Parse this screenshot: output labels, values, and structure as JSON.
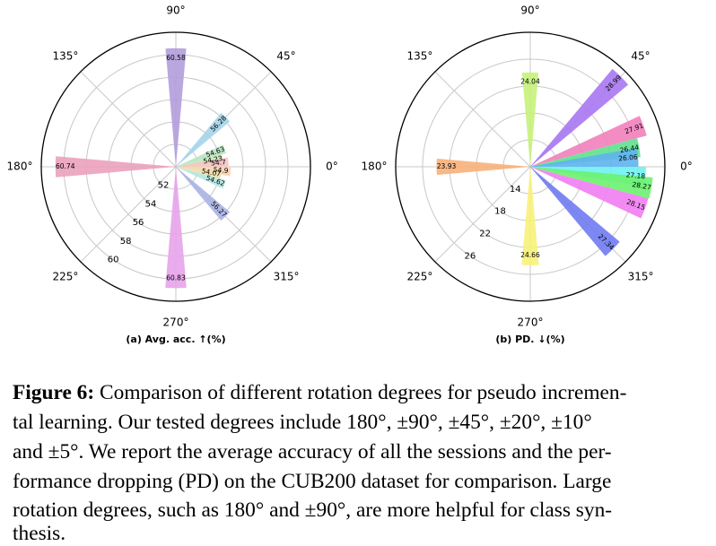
{
  "charts": [
    {
      "chart_data": {
        "type": "polar-bar",
        "title": "(a) Avg. acc. ↑(%)",
        "angle_tick_labels": [
          "90°",
          "45°",
          "0°",
          "315°",
          "270°",
          "225°",
          "180°",
          "135°"
        ],
        "radial_tick_labels": [
          "52",
          "54",
          "56",
          "58",
          "60"
        ],
        "radial_ticks": [
          52,
          54,
          56,
          58,
          60
        ],
        "rlim": [
          50,
          62
        ],
        "bars": [
          {
            "angle": 90,
            "value": 60.58,
            "label": "60.58",
            "color": "#b39ddb"
          },
          {
            "angle": 45,
            "value": 56.28,
            "label": "56.28",
            "color": "#a6d4ea"
          },
          {
            "angle": 20,
            "value": 54.63,
            "label": "54.63",
            "color": "#b7e4c2"
          },
          {
            "angle": 10,
            "value": 54.23,
            "label": "54.23",
            "color": "#c6e3b4"
          },
          {
            "angle": 5,
            "value": 54.7,
            "label": "54.7",
            "color": "#f6c4c4"
          },
          {
            "angle": -5,
            "value": 54.9,
            "label": "54.9",
            "color": "#f7d4b0"
          },
          {
            "angle": -10,
            "value": 54.07,
            "label": "54.07",
            "color": "#f0e0a6"
          },
          {
            "angle": -20,
            "value": 54.62,
            "label": "54.62",
            "color": "#b4e6e0"
          },
          {
            "angle": -45,
            "value": 56.27,
            "label": "56.27",
            "color": "#aab3e6"
          },
          {
            "angle": -90,
            "value": 60.83,
            "label": "60.83",
            "color": "#e7a3ea"
          },
          {
            "angle": 180,
            "value": 60.74,
            "label": "60.74",
            "color": "#eba1bd"
          }
        ]
      }
    },
    {
      "chart_data": {
        "type": "polar-bar",
        "title": "(b) PD. ↓(%)",
        "angle_tick_labels": [
          "90°",
          "45°",
          "0°",
          "315°",
          "270°",
          "225°",
          "180°",
          "135°"
        ],
        "radial_tick_labels": [
          "14",
          "18",
          "22",
          "26"
        ],
        "radial_ticks": [
          14,
          18,
          22,
          26
        ],
        "rlim": [
          10,
          30
        ],
        "bars": [
          {
            "angle": 90,
            "value": 24.04,
            "label": "24.04",
            "color": "#c7f27a"
          },
          {
            "angle": 45,
            "value": 28.99,
            "label": "28.99",
            "color": "#a877f2"
          },
          {
            "angle": 20,
            "value": 27.91,
            "label": "27.91",
            "color": "#f27fbd"
          },
          {
            "angle": 10,
            "value": 26.44,
            "label": "26.44",
            "color": "#5fe08d"
          },
          {
            "angle": 5,
            "value": 26.06,
            "label": "26.06",
            "color": "#5fb3f0"
          },
          {
            "angle": -5,
            "value": 27.18,
            "label": "27.18",
            "color": "#6ef2f0"
          },
          {
            "angle": -10,
            "value": 28.27,
            "label": "28.27",
            "color": "#6cf26e"
          },
          {
            "angle": -20,
            "value": 28.15,
            "label": "28.15",
            "color": "#f07ef2"
          },
          {
            "angle": -45,
            "value": 27.34,
            "label": "27.34",
            "color": "#6f7bf2"
          },
          {
            "angle": -90,
            "value": 24.66,
            "label": "24.66",
            "color": "#f7f27a"
          },
          {
            "angle": 180,
            "value": 23.93,
            "label": "23.93",
            "color": "#f7b07a"
          }
        ]
      }
    }
  ],
  "caption": {
    "label": "Figure 6:",
    "lines": [
      " Comparison of different rotation degrees for pseudo incremen-",
      "tal learning. Our tested degrees include 180°, ±90°, ±45°, ±20°, ±10°",
      "and ±5°.  We report the average accuracy of all the sessions and the per-",
      "formance dropping (PD) on the CUB200 dataset for comparison.  Large",
      "rotation degrees, such as 180° and ±90°, are more helpful for class syn-",
      "thesis."
    ]
  }
}
